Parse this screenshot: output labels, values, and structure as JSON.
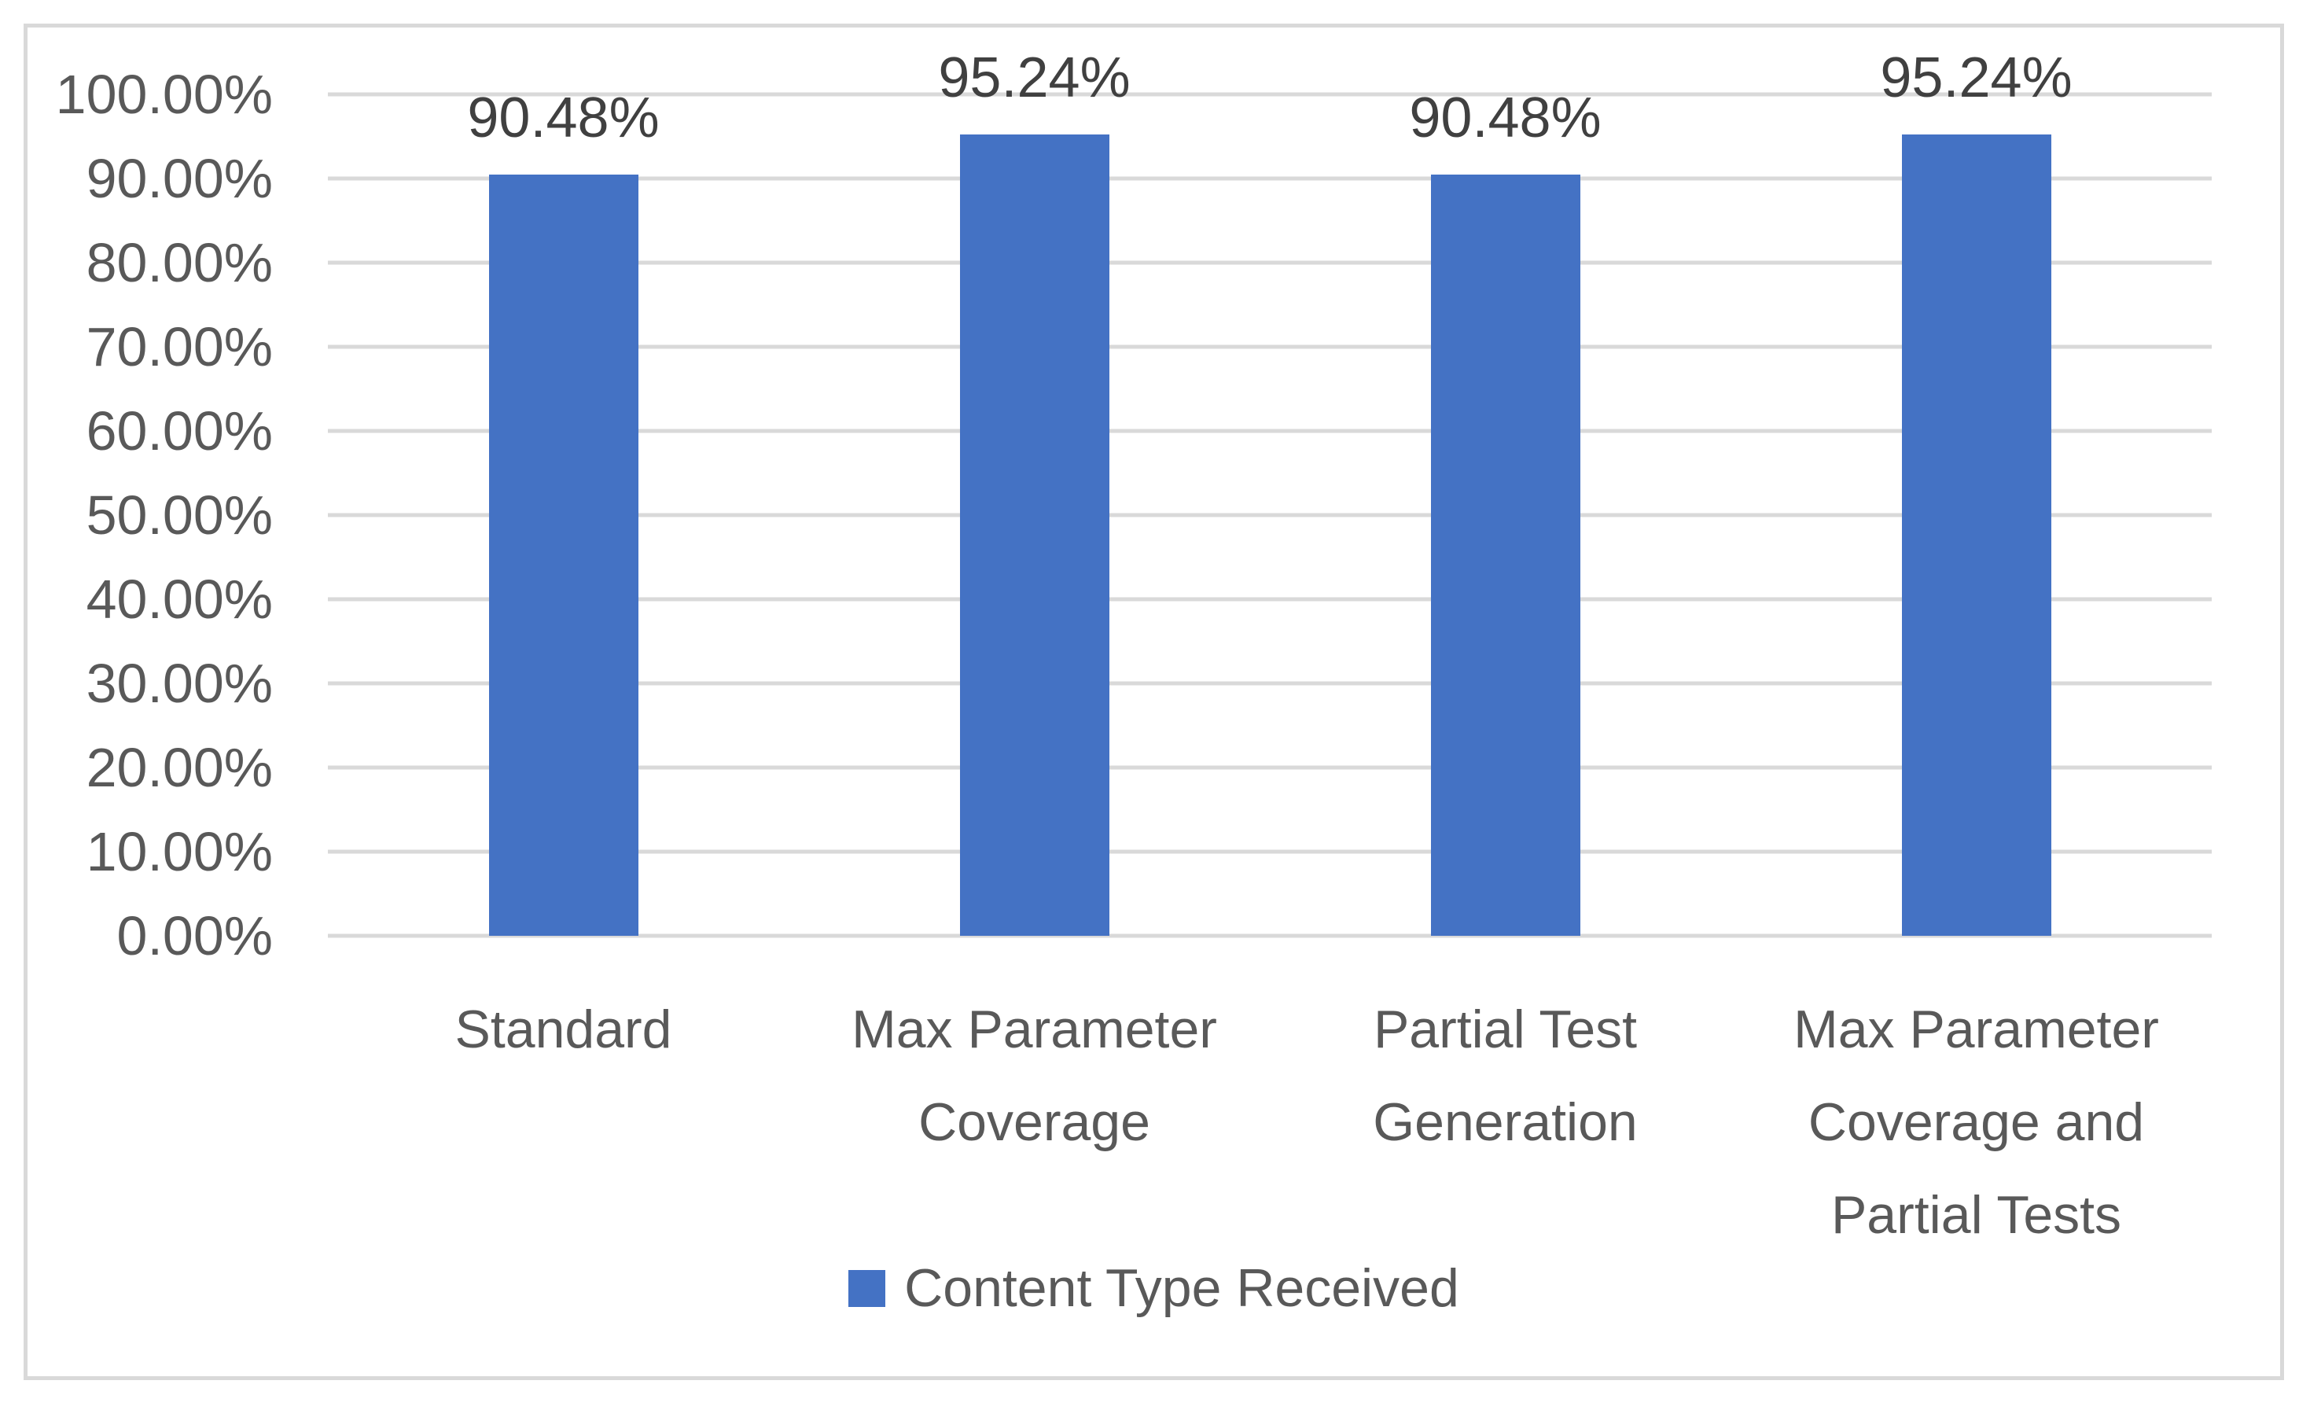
{
  "chart_data": {
    "type": "bar",
    "title": "",
    "categories": [
      "Standard",
      "Max Parameter Coverage",
      "Partial Test Generation",
      "Max Parameter Coverage and Partial Tests"
    ],
    "categories_wrapped": [
      [
        "Standard"
      ],
      [
        "Max Parameter",
        "Coverage"
      ],
      [
        "Partial Test",
        "Generation"
      ],
      [
        "Max Parameter",
        "Coverage and",
        "Partial Tests"
      ]
    ],
    "series": [
      {
        "name": "Content Type Received",
        "values": [
          90.48,
          95.24,
          90.48,
          95.24
        ]
      }
    ],
    "data_labels": [
      "90.48%",
      "95.24%",
      "90.48%",
      "95.24%"
    ],
    "y_axis": {
      "min": 0,
      "max": 100,
      "step": 10,
      "format": "percent",
      "tick_labels": [
        "100.00%",
        "90.00%",
        "80.00%",
        "70.00%",
        "60.00%",
        "50.00%",
        "40.00%",
        "30.00%",
        "20.00%",
        "10.00%",
        "0.00%"
      ]
    },
    "legend": {
      "position": "bottom",
      "entries": [
        "Content Type Received"
      ]
    },
    "grid": true,
    "colors": {
      "bar": "#4472C4",
      "gridline": "#D9D9D9",
      "frame_border": "#D9D9D9",
      "axis_text": "#595959",
      "data_label_text": "#404040",
      "background": "#FFFFFF"
    }
  }
}
